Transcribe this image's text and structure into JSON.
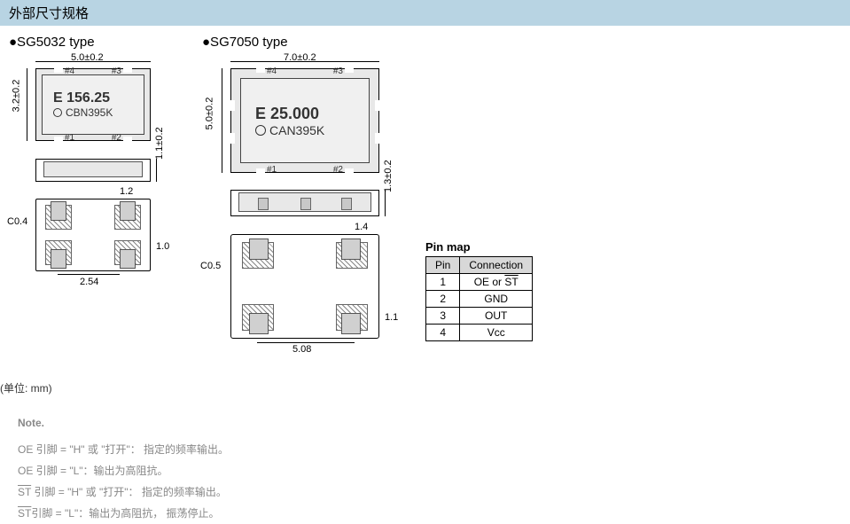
{
  "header": {
    "title": "外部尺寸规格"
  },
  "sg5032": {
    "label": "●SG5032 type",
    "top": {
      "width": "5.0±0.2",
      "height": "3.2±0.2",
      "freq": "E 156.25",
      "code": "CBN395K",
      "pins": {
        "p1": "#1",
        "p2": "#2",
        "p3": "#3",
        "p4": "#4"
      }
    },
    "side": {
      "height": "1.1±0.2"
    },
    "bottom": {
      "pad_w": "1.2",
      "pad_h": "1.0",
      "pitch": "2.54",
      "chamfer": "C0.4"
    }
  },
  "sg7050": {
    "label": "●SG7050 type",
    "top": {
      "width": "7.0±0.2",
      "height": "5.0±0.2",
      "freq": "E 25.000",
      "code": "CAN395K",
      "pins": {
        "p1": "#1",
        "p2": "#2",
        "p3": "#3",
        "p4": "#4"
      }
    },
    "side": {
      "height": "1.3±0.2"
    },
    "bottom": {
      "pad_w": "1.4",
      "pad_h": "1.1",
      "pitch": "5.08",
      "chamfer": "C0.5"
    }
  },
  "pinmap": {
    "title": "Pin map",
    "headers": {
      "pin": "Pin",
      "conn": "Connection"
    },
    "rows": [
      {
        "pin": "1",
        "conn": "OE or ST",
        "overline": true
      },
      {
        "pin": "2",
        "conn": "GND"
      },
      {
        "pin": "3",
        "conn": "OUT"
      },
      {
        "pin": "4",
        "conn": "Vcc"
      }
    ]
  },
  "unit": "(单位: mm)",
  "notes": {
    "title": "Note.",
    "lines": [
      "OE 引脚 = \"H\" 或 \"打开\"：  指定的频率输出。",
      "OE 引脚 = \"L\"：输出为高阻抗。",
      "ST 引脚 = \"H\" 或 \"打开\"：  指定的频率输出。",
      "ST引脚 = \"L\"：输出为高阻抗， 振荡停止。"
    ],
    "overlines": [
      "OE",
      "OE",
      "ST",
      "ST"
    ]
  }
}
